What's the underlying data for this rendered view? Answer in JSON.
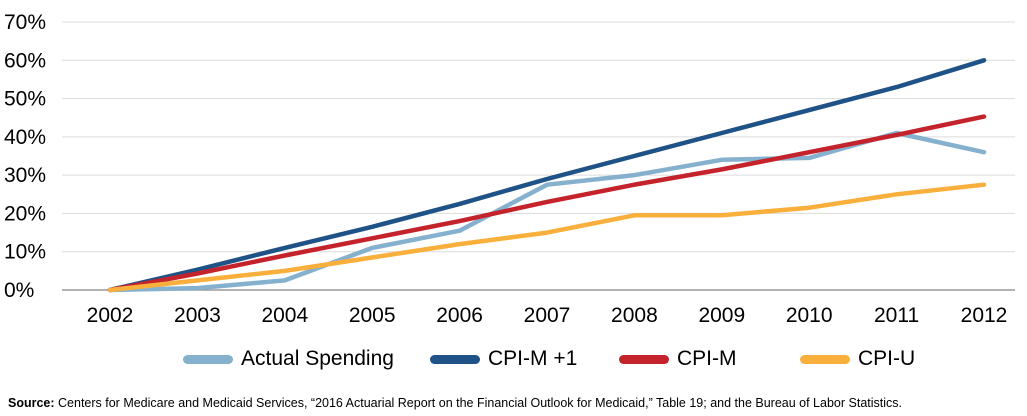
{
  "chart_data": {
    "type": "line",
    "categories": [
      "2002",
      "2003",
      "2004",
      "2005",
      "2006",
      "2007",
      "2008",
      "2009",
      "2010",
      "2011",
      "2012"
    ],
    "y_ticks": [
      "0%",
      "10%",
      "20%",
      "30%",
      "40%",
      "50%",
      "60%",
      "70%"
    ],
    "ylim": [
      0,
      70
    ],
    "grid": "horizontal",
    "legend_position": "bottom",
    "series": [
      {
        "name": "Actual Spending",
        "color": "#86B1CE",
        "values": [
          0,
          0.5,
          2.5,
          11,
          15.5,
          27.5,
          30,
          34,
          34.5,
          41,
          36
        ]
      },
      {
        "name": "CPI-M +1",
        "color": "#1F5286",
        "values": [
          0,
          5.3,
          11,
          16.5,
          22.5,
          29,
          35,
          41,
          47,
          53,
          60
        ]
      },
      {
        "name": "CPI-M",
        "color": "#C4232B",
        "values": [
          0,
          4.3,
          9,
          13.5,
          18,
          23,
          27.5,
          31.5,
          36,
          40.5,
          45.3
        ]
      },
      {
        "name": "CPI-U",
        "color": "#F9AF3C",
        "values": [
          0,
          2.5,
          5,
          8.5,
          12,
          15,
          19.5,
          19.5,
          21.5,
          25,
          27.5
        ]
      }
    ]
  },
  "legend": {
    "items": [
      {
        "label": "Actual Spending",
        "color": "#86B1CE"
      },
      {
        "label": "CPI-M +1",
        "color": "#1F5286"
      },
      {
        "label": "CPI-M",
        "color": "#C4232B"
      },
      {
        "label": "CPI-U",
        "color": "#F9AF3C"
      }
    ]
  },
  "source": {
    "label": "Source:",
    "text": " Centers for Medicare and Medicaid Services, “2016 Actuarial Report on the Financial Outlook for Medicaid,” Table 19; and the Bureau of Labor Statistics."
  }
}
